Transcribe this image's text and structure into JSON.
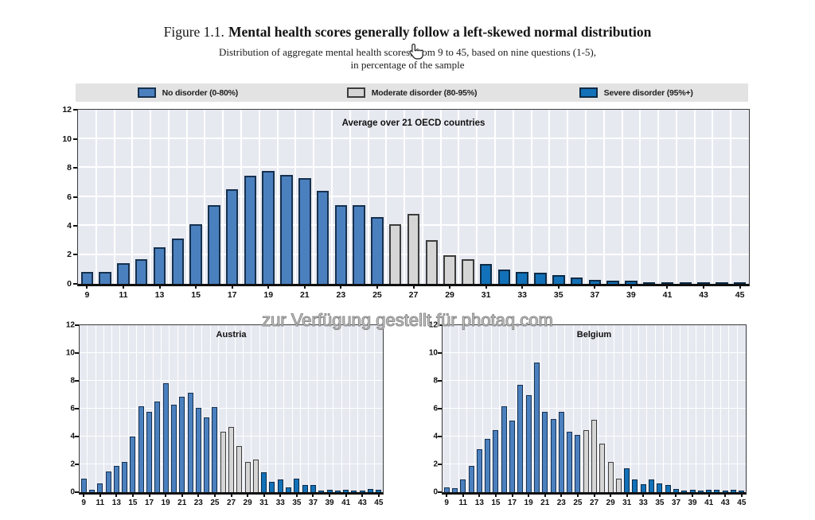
{
  "figure": {
    "label": "Figure 1.1.",
    "title": "Mental health scores generally follow a left-skewed normal distribution",
    "subtitle_line1": "Distribution of aggregate mental health scores, from 9 to 45, based on nine questions (1-5),",
    "subtitle_line2": "in percentage of the sample"
  },
  "watermark": "zur Verfügung gestellt für photaq.com",
  "legend": [
    {
      "label": "No disorder (0-80%)",
      "color": "#4b80bf",
      "border": "#16314e"
    },
    {
      "label": "Moderate disorder (80-95%)",
      "color": "#d5d5d5",
      "border": "#3c3c3c"
    },
    {
      "label": "Severe disorder (95%+)",
      "color": "#1271b8",
      "border": "#0d2b44"
    }
  ],
  "colors": {
    "plot_background": "#e7e9f1",
    "gridline": "#ffffff",
    "axis": "#101010",
    "legend_strip": "#e3e3e3"
  },
  "chart_data": [
    {
      "type": "bar",
      "title": "Average over 21 OECD countries",
      "xlabel": "",
      "ylabel": "",
      "ylim": [
        0,
        12
      ],
      "yticks": [
        0,
        2,
        4,
        6,
        8,
        10,
        12
      ],
      "grid": true,
      "legend_position": "top-strip",
      "moderate_from": 26,
      "severe_from": 31,
      "x": [
        9,
        10,
        11,
        12,
        13,
        14,
        15,
        16,
        17,
        18,
        19,
        20,
        21,
        22,
        23,
        24,
        25,
        26,
        27,
        28,
        29,
        30,
        31,
        32,
        33,
        34,
        35,
        36,
        37,
        38,
        39,
        40,
        41,
        42,
        43,
        44,
        45
      ],
      "xtick_labels": [
        9,
        11,
        13,
        15,
        17,
        19,
        21,
        23,
        25,
        27,
        29,
        31,
        33,
        35,
        37,
        39,
        41,
        43,
        45
      ],
      "values": [
        0.85,
        0.85,
        1.45,
        1.7,
        2.5,
        3.15,
        4.1,
        5.45,
        6.5,
        7.45,
        7.8,
        7.5,
        7.3,
        6.4,
        5.45,
        5.4,
        4.6,
        4.1,
        4.85,
        3.0,
        1.95,
        1.7,
        1.35,
        1.0,
        0.85,
        0.75,
        0.6,
        0.45,
        0.3,
        0.2,
        0.2,
        0.12,
        0.1,
        0.1,
        0.08,
        0.08,
        0.1
      ]
    },
    {
      "type": "bar",
      "title": "Austria",
      "xlabel": "",
      "ylabel": "",
      "ylim": [
        0,
        12
      ],
      "yticks": [
        0,
        2,
        4,
        6,
        8,
        10,
        12
      ],
      "grid": true,
      "moderate_from": 26,
      "severe_from": 31,
      "x": [
        9,
        10,
        11,
        12,
        13,
        14,
        15,
        16,
        17,
        18,
        19,
        20,
        21,
        22,
        23,
        24,
        25,
        26,
        27,
        28,
        29,
        30,
        31,
        32,
        33,
        34,
        35,
        36,
        37,
        38,
        39,
        40,
        41,
        42,
        43,
        44,
        45
      ],
      "xtick_labels": [
        9,
        11,
        13,
        15,
        17,
        19,
        21,
        23,
        25,
        27,
        29,
        31,
        33,
        35,
        37,
        39,
        41,
        43,
        45
      ],
      "values": [
        0.95,
        0.2,
        0.65,
        1.5,
        1.9,
        2.2,
        4.0,
        6.2,
        5.8,
        6.5,
        7.85,
        6.3,
        6.85,
        7.15,
        6.05,
        5.4,
        6.1,
        4.35,
        4.7,
        3.3,
        2.15,
        2.35,
        1.45,
        0.75,
        0.9,
        0.35,
        1.0,
        0.5,
        0.5,
        0.1,
        0.15,
        0.1,
        0.2,
        0.1,
        0.1,
        0.25,
        0.15
      ]
    },
    {
      "type": "bar",
      "title": "Belgium",
      "xlabel": "",
      "ylabel": "",
      "ylim": [
        0,
        12
      ],
      "yticks": [
        0,
        2,
        4,
        6,
        8,
        10,
        12
      ],
      "grid": true,
      "moderate_from": 26,
      "severe_from": 31,
      "x": [
        9,
        10,
        11,
        12,
        13,
        14,
        15,
        16,
        17,
        18,
        19,
        20,
        21,
        22,
        23,
        24,
        25,
        26,
        27,
        28,
        29,
        30,
        31,
        32,
        33,
        34,
        35,
        36,
        37,
        38,
        39,
        40,
        41,
        42,
        43,
        44,
        45
      ],
      "xtick_labels": [
        9,
        11,
        13,
        15,
        17,
        19,
        21,
        23,
        25,
        27,
        29,
        31,
        33,
        35,
        37,
        39,
        41,
        43,
        45
      ],
      "values": [
        0.35,
        0.3,
        0.9,
        1.9,
        3.1,
        3.85,
        4.45,
        6.2,
        5.15,
        7.7,
        7.0,
        9.3,
        5.8,
        5.25,
        5.8,
        4.35,
        4.1,
        4.45,
        5.2,
        3.5,
        2.2,
        1.0,
        1.7,
        0.9,
        0.6,
        0.9,
        0.65,
        0.5,
        0.25,
        0.1,
        0.15,
        0.1,
        0.15,
        0.2,
        0.1,
        0.2,
        0.1
      ]
    }
  ]
}
